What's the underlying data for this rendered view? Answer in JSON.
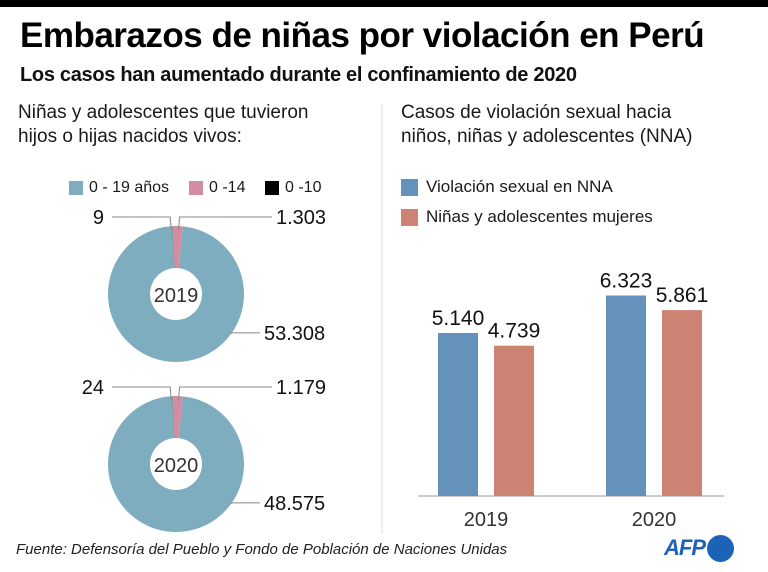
{
  "header": {
    "title": "Embarazos de niñas por violación en Perú",
    "subtitle": "Los casos han aumentado durante el confinamiento de 2020"
  },
  "left_panel": {
    "title": "Niñas y adolescentes que tuvieron\nhijos o hijas  nacidos vivos:"
  },
  "right_panel": {
    "title": "Casos de violación sexual hacia\nniños, niñas y adolescentes (NNA)"
  },
  "footer": {
    "source": "Fuente: Defensoría del Pueblo y Fondo de Población de Naciones Unidas",
    "logo_text": "AFP"
  },
  "chart_data": [
    {
      "type": "pie",
      "variant": "donut",
      "title": "Niñas y adolescentes que tuvieron hijos o hijas nacidos vivos",
      "legend": [
        {
          "label": "0 - 19 años",
          "color": "#7fadc0"
        },
        {
          "label": "0 -14",
          "color": "#d48ca0"
        },
        {
          "label": "0 -10",
          "color": "#000000"
        }
      ],
      "legend_placement": "top",
      "donuts": [
        {
          "center_label": "2019",
          "slices": [
            {
              "category": "0 - 19 años",
              "value": 53308,
              "label": "53.308"
            },
            {
              "category": "0 -14",
              "value": 1303,
              "label": "1.303"
            },
            {
              "category": "0 -10",
              "value": 9,
              "label": "9"
            }
          ]
        },
        {
          "center_label": "2020",
          "slices": [
            {
              "category": "0 - 19 años",
              "value": 48575,
              "label": "48.575"
            },
            {
              "category": "0 -14",
              "value": 1179,
              "label": "1.179"
            },
            {
              "category": "0 -10",
              "value": 24,
              "label": "24"
            }
          ]
        }
      ]
    },
    {
      "type": "bar",
      "title": "Casos de violación sexual hacia niños, niñas y adolescentes (NNA)",
      "categories": [
        "2019",
        "2020"
      ],
      "series": [
        {
          "name": "Violación sexual en NNA",
          "color": "#6592bb",
          "values": [
            5140,
            6323
          ],
          "labels": [
            "5.140",
            "6.323"
          ]
        },
        {
          "name": "Niñas y adolescentes mujeres",
          "color": "#cd8373",
          "values": [
            4739,
            5861
          ],
          "labels": [
            "4.739",
            "5.861"
          ]
        }
      ],
      "ylim": [
        0,
        7000
      ],
      "grid": false,
      "legend_placement": "top-left",
      "xlabel": "",
      "ylabel": ""
    }
  ]
}
